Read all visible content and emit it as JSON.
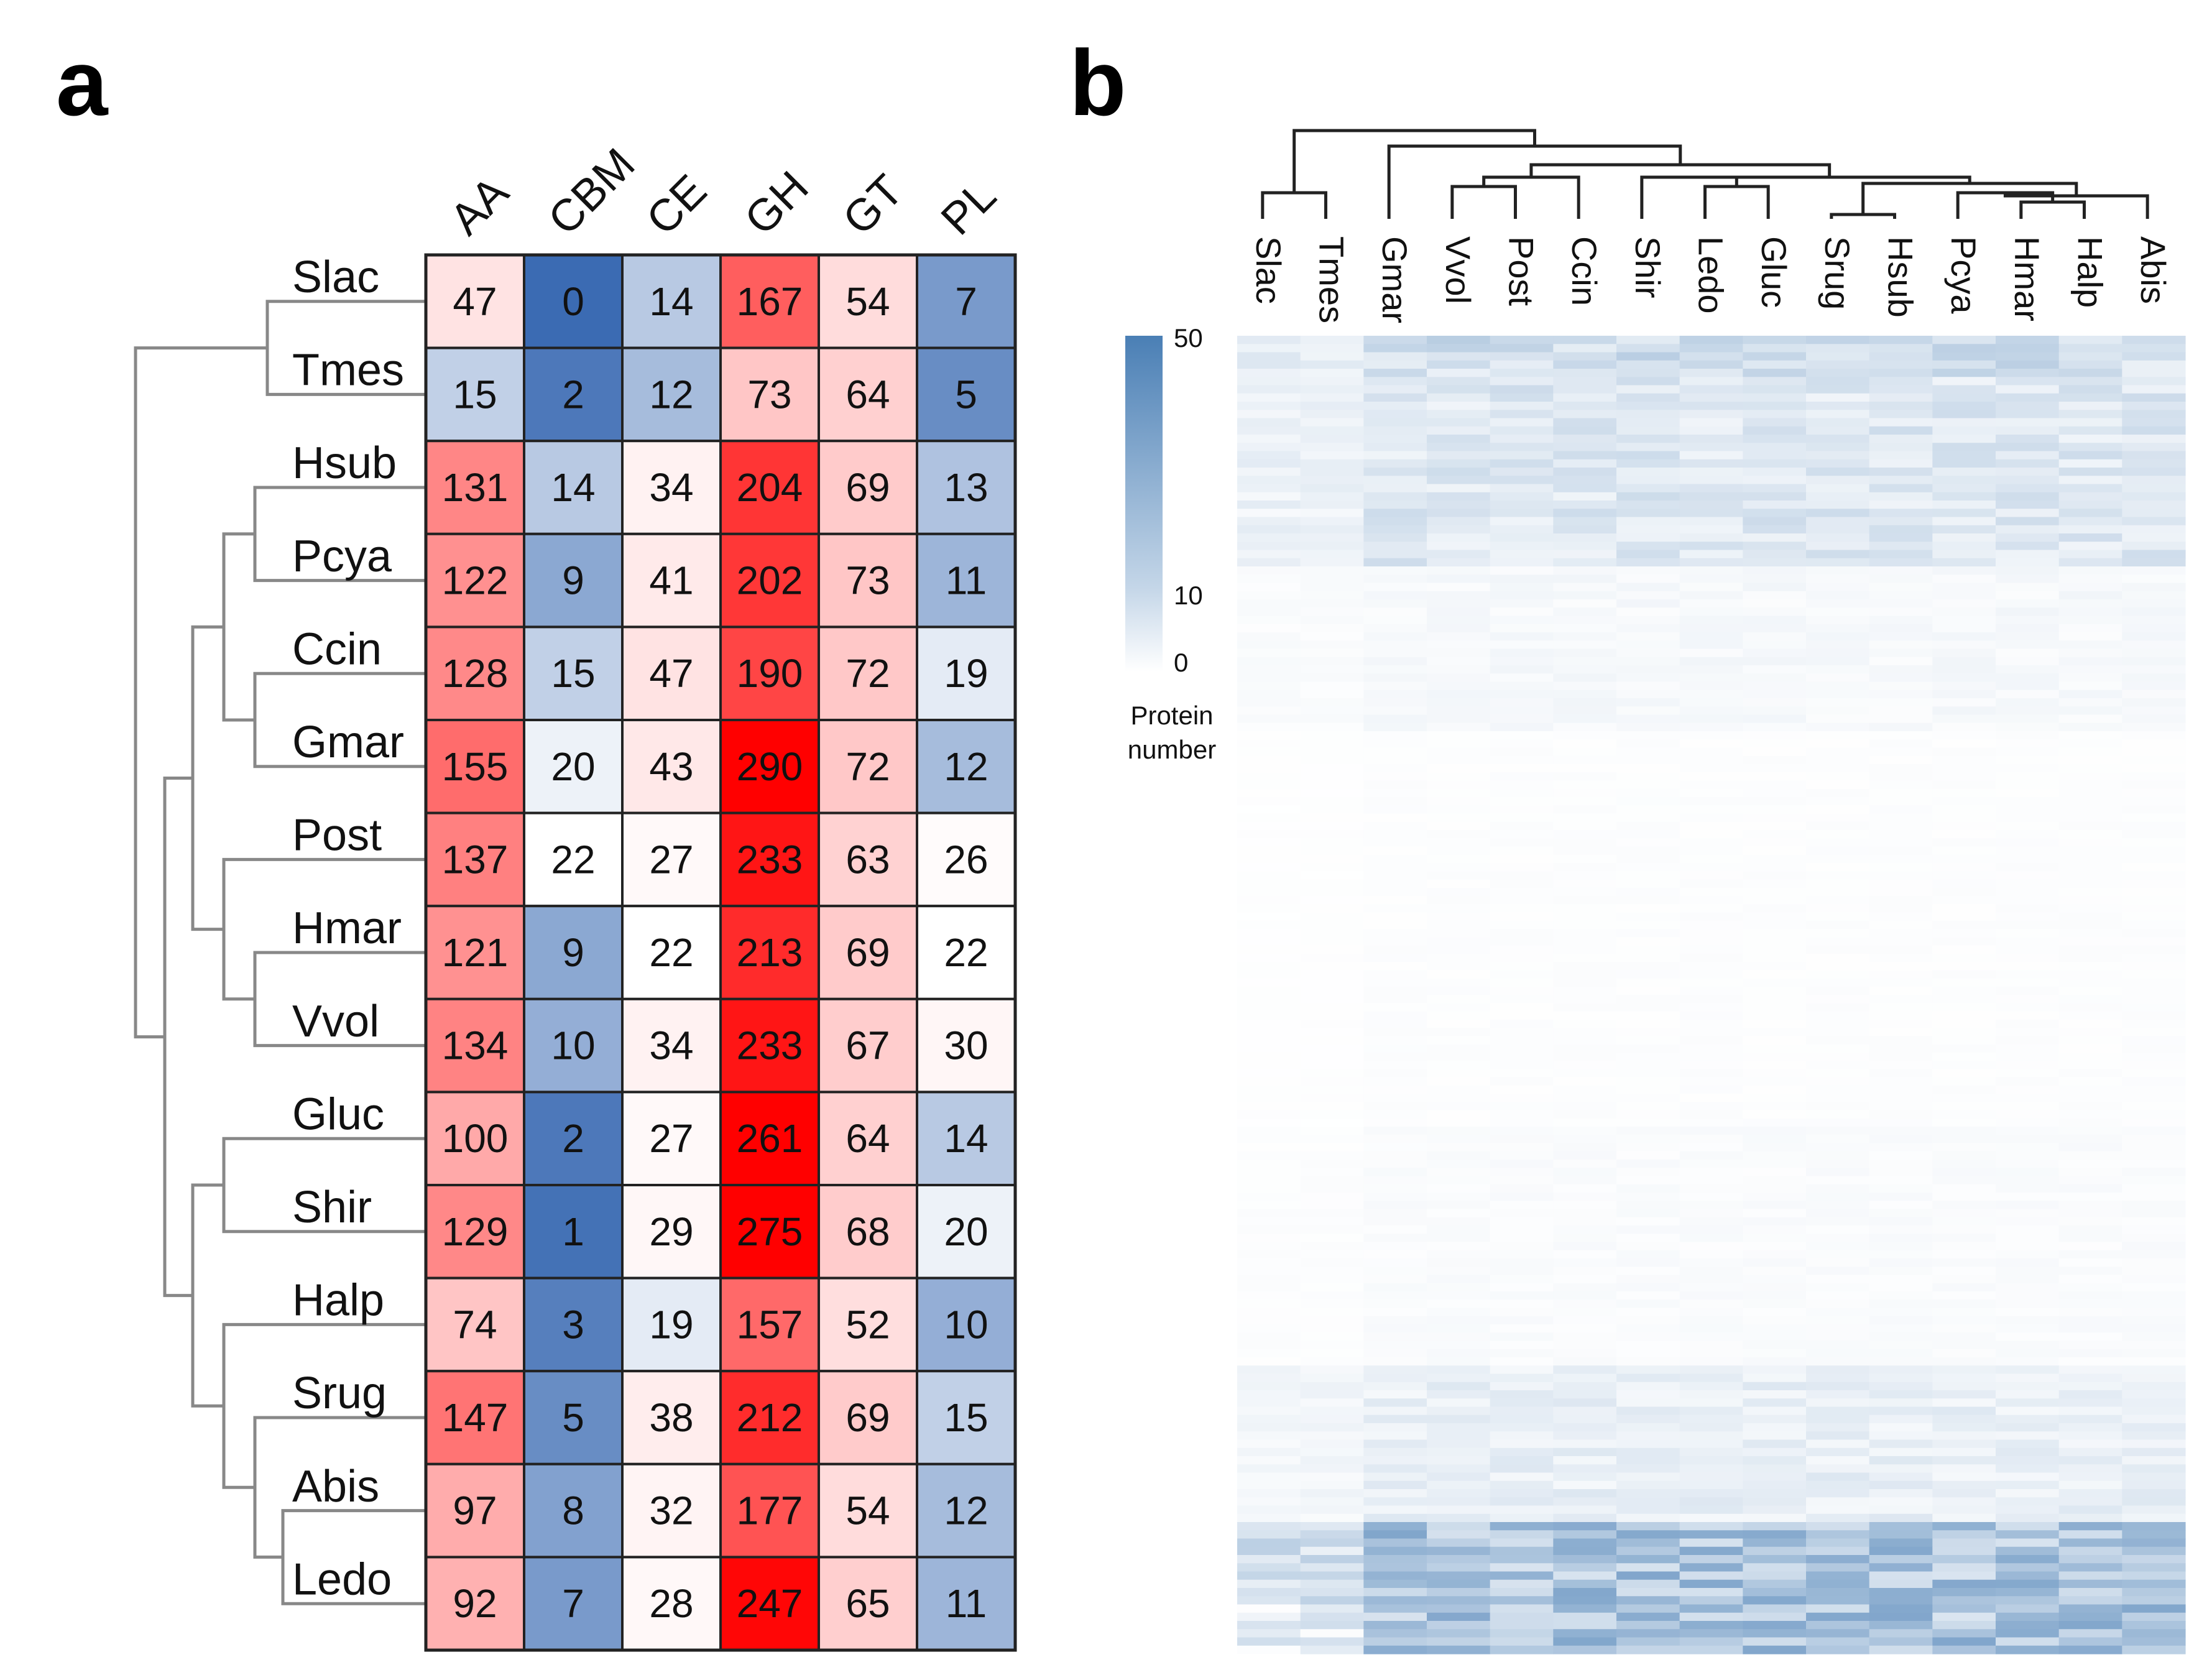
{
  "panel_a": {
    "letter": "a"
  },
  "panel_b": {
    "letter": "b"
  },
  "chart_data": [
    {
      "type": "heatmap",
      "title": "",
      "columns": [
        "AA",
        "CBM",
        "CE",
        "GH",
        "GT",
        "PL"
      ],
      "rows": [
        "Slac",
        "Tmes",
        "Hsub",
        "Pcya",
        "Ccin",
        "Gmar",
        "Post",
        "Hmar",
        "Vvol",
        "Gluc",
        "Shir",
        "Halp",
        "Srug",
        "Abis",
        "Ledo"
      ],
      "values": [
        [
          47,
          0,
          14,
          167,
          54,
          7
        ],
        [
          15,
          2,
          12,
          73,
          64,
          5
        ],
        [
          131,
          14,
          34,
          204,
          69,
          13
        ],
        [
          122,
          9,
          41,
          202,
          73,
          11
        ],
        [
          128,
          15,
          47,
          190,
          72,
          19
        ],
        [
          155,
          20,
          43,
          290,
          72,
          12
        ],
        [
          137,
          22,
          27,
          233,
          63,
          26
        ],
        [
          121,
          9,
          22,
          213,
          69,
          22
        ],
        [
          134,
          10,
          34,
          233,
          67,
          30
        ],
        [
          100,
          2,
          27,
          261,
          64,
          14
        ],
        [
          129,
          1,
          29,
          275,
          68,
          20
        ],
        [
          74,
          3,
          19,
          157,
          52,
          10
        ],
        [
          147,
          5,
          38,
          212,
          69,
          15
        ],
        [
          97,
          8,
          32,
          177,
          54,
          12
        ],
        [
          92,
          7,
          28,
          247,
          65,
          11
        ]
      ],
      "row_dendrogram": "left",
      "colors": {
        "high": "#ff0000",
        "mid": "#ffffff",
        "low": "#3b6bb3",
        "border": "#222222"
      }
    },
    {
      "type": "heatmap",
      "columns": [
        "Slac",
        "Tmes",
        "Gmar",
        "Vvol",
        "Post",
        "Ccin",
        "Shir",
        "Ledo",
        "Gluc",
        "Srug",
        "Hsub",
        "Pcya",
        "Hmar",
        "Halp",
        "Abis"
      ],
      "column_dendrogram": "top",
      "colorbar": {
        "ticks": [
          50,
          10,
          0
        ],
        "label_line1": "Protein",
        "label_line2": "number",
        "range": [
          0,
          50
        ]
      },
      "colors": {
        "high": "#4a7fb5",
        "low": "#ffffff"
      }
    }
  ]
}
